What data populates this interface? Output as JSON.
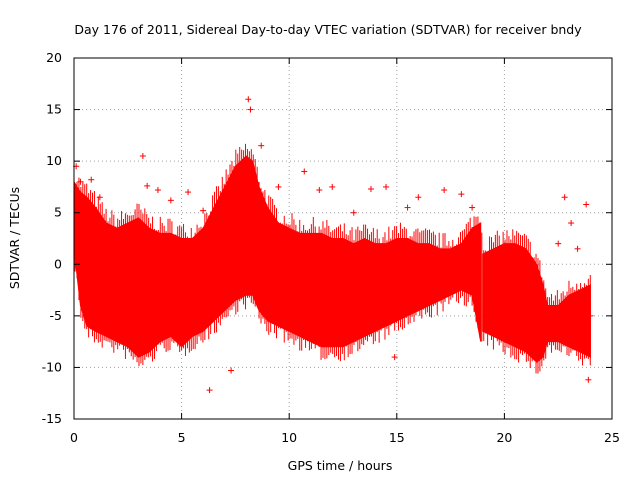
{
  "chart_data": {
    "type": "scatter",
    "title": "Day 176 of 2011, Sidereal Day-to-day VTEC variation (SDTVAR) for receiver bndy",
    "xlabel": "GPS time / hours",
    "ylabel": "SDTVAR / TECUs",
    "xlim": [
      0,
      25
    ],
    "ylim": [
      -15,
      20
    ],
    "xticks": [
      "0",
      "5",
      "10",
      "15",
      "20",
      "25"
    ],
    "yticks": [
      "-15",
      "-10",
      "-5",
      "0",
      "5",
      "10",
      "15",
      "20"
    ],
    "grid": true,
    "colors": {
      "series": "#ff0000",
      "grid": "#a0a0a0",
      "axes": "#000000"
    },
    "series": [
      {
        "name": "SDTVAR",
        "marker": "plus-with-errorbars",
        "envelope": {
          "x": [
            0.0,
            0.3,
            0.6,
            1.0,
            1.5,
            2.0,
            2.5,
            3.0,
            3.5,
            4.0,
            4.5,
            5.0,
            5.5,
            6.0,
            6.5,
            7.0,
            7.5,
            8.0,
            8.3,
            8.6,
            9.0,
            9.5,
            10.0,
            10.5,
            11.0,
            11.5,
            12.0,
            12.5,
            13.0,
            13.5,
            14.0,
            14.5,
            15.0,
            15.5,
            16.0,
            16.5,
            17.0,
            17.5,
            18.0,
            18.5,
            18.9,
            19.0,
            19.5,
            20.0,
            20.5,
            21.0,
            21.5,
            21.8,
            22.0,
            22.5,
            23.0,
            23.5,
            24.0
          ],
          "upper": [
            8.0,
            7.0,
            6.5,
            5.5,
            4.0,
            3.5,
            4.0,
            4.5,
            3.5,
            3.0,
            3.0,
            2.5,
            2.5,
            3.5,
            5.5,
            7.5,
            9.5,
            10.5,
            10.0,
            7.5,
            5.5,
            4.0,
            3.5,
            3.0,
            3.0,
            3.0,
            2.5,
            2.5,
            2.0,
            2.5,
            2.0,
            2.0,
            2.5,
            2.5,
            2.0,
            2.0,
            1.5,
            1.5,
            2.0,
            3.5,
            4.0,
            1.0,
            1.5,
            2.0,
            2.0,
            1.5,
            0.0,
            -2.0,
            -4.0,
            -4.0,
            -3.0,
            -2.5,
            -2.0
          ],
          "lower": [
            1.5,
            -4.0,
            -6.0,
            -6.5,
            -7.0,
            -7.5,
            -8.0,
            -9.0,
            -8.5,
            -7.5,
            -7.0,
            -8.0,
            -7.0,
            -6.5,
            -5.5,
            -4.5,
            -3.5,
            -3.0,
            -3.0,
            -4.5,
            -5.5,
            -6.0,
            -6.5,
            -7.0,
            -7.5,
            -8.0,
            -8.0,
            -8.0,
            -7.5,
            -7.0,
            -6.5,
            -6.0,
            -5.5,
            -5.0,
            -4.5,
            -4.0,
            -3.5,
            -3.0,
            -2.5,
            -3.0,
            -7.5,
            -6.5,
            -7.0,
            -7.5,
            -8.0,
            -8.5,
            -9.5,
            -9.0,
            -7.5,
            -7.5,
            -8.0,
            -8.5,
            -9.0
          ]
        },
        "outliers": [
          [
            0.1,
            9.5
          ],
          [
            0.3,
            8.0
          ],
          [
            0.8,
            8.2
          ],
          [
            1.2,
            6.5
          ],
          [
            3.2,
            10.5
          ],
          [
            3.4,
            7.6
          ],
          [
            3.9,
            7.2
          ],
          [
            4.5,
            6.2
          ],
          [
            5.3,
            7.0
          ],
          [
            6.0,
            5.2
          ],
          [
            6.3,
            -12.2
          ],
          [
            7.3,
            -10.3
          ],
          [
            8.1,
            16.0
          ],
          [
            8.2,
            15.0
          ],
          [
            8.7,
            11.5
          ],
          [
            9.5,
            7.5
          ],
          [
            10.7,
            9.0
          ],
          [
            11.4,
            7.2
          ],
          [
            12.0,
            7.5
          ],
          [
            13.0,
            5.0
          ],
          [
            13.8,
            7.3
          ],
          [
            14.5,
            7.5
          ],
          [
            14.9,
            -9.0
          ],
          [
            15.5,
            5.5
          ],
          [
            16.0,
            6.5
          ],
          [
            17.2,
            7.2
          ],
          [
            18.0,
            6.8
          ],
          [
            18.5,
            5.5
          ],
          [
            22.8,
            6.5
          ],
          [
            22.5,
            2.0
          ],
          [
            23.1,
            4.0
          ],
          [
            23.4,
            1.5
          ],
          [
            23.8,
            5.8
          ],
          [
            23.9,
            -11.2
          ],
          [
            24.0,
            -5.0
          ]
        ]
      }
    ]
  }
}
